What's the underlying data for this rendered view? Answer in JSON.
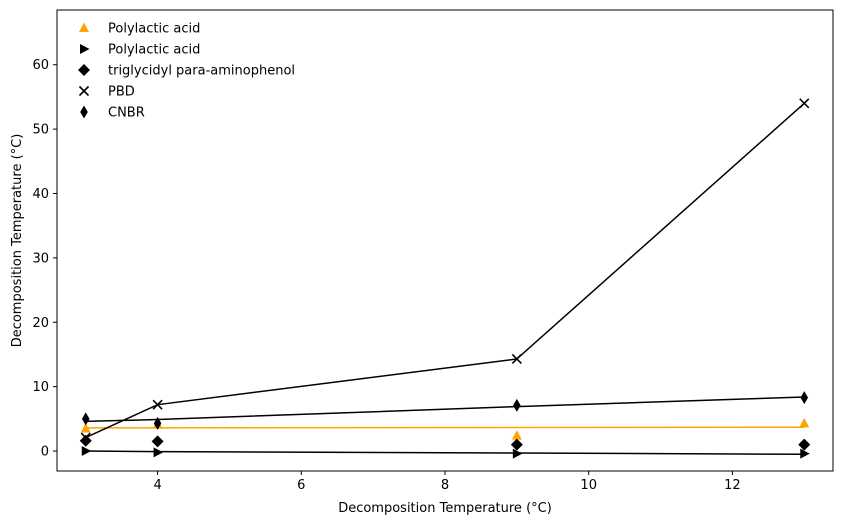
{
  "chart_data": {
    "type": "scatter",
    "xlabel": "Decomposition Temperature (°C)",
    "ylabel": "Decomposition Temperature (°C)",
    "xlim": [
      2.6,
      13.4
    ],
    "ylim": [
      -3.1,
      68.5
    ],
    "xticks": [
      4,
      6,
      8,
      10,
      12
    ],
    "yticks": [
      0,
      10,
      20,
      30,
      40,
      50,
      60
    ],
    "grid": false,
    "legend_position": "top-left",
    "series": [
      {
        "name": "Polylactic acid",
        "marker": "triangle-up",
        "color": "#ffa500",
        "x": [
          3,
          4,
          9,
          13
        ],
        "y": [
          3.5,
          4.1,
          2.4,
          4.3
        ],
        "fit_line": [
          [
            3,
            3.6
          ],
          [
            13,
            3.7
          ]
        ]
      },
      {
        "name": "Polylactic acid",
        "marker": "triangle-right",
        "color": "#000000",
        "x": [
          3,
          4,
          9,
          13
        ],
        "y": [
          0.0,
          -0.2,
          -0.4,
          -0.4
        ],
        "fit_line": [
          [
            3,
            0.0
          ],
          [
            4,
            -0.1
          ],
          [
            9,
            -0.3
          ],
          [
            13,
            -0.5
          ]
        ]
      },
      {
        "name": "triglycidyl para-aminophenol",
        "marker": "diamond",
        "color": "#000000",
        "x": [
          3,
          4,
          9,
          13
        ],
        "y": [
          1.6,
          1.5,
          1.0,
          1.0
        ],
        "fit_line": null
      },
      {
        "name": "PBD",
        "marker": "x",
        "color": "#000000",
        "x": [
          3,
          4,
          9,
          13
        ],
        "y": [
          2.1,
          7.2,
          14.3,
          54.0
        ],
        "fit_line": [
          [
            3,
            2.1
          ],
          [
            4,
            7.2
          ],
          [
            9,
            14.3
          ],
          [
            13,
            54.0
          ]
        ]
      },
      {
        "name": "CNBR",
        "marker": "thin-diamond",
        "color": "#000000",
        "x": [
          3,
          4,
          9,
          13
        ],
        "y": [
          5.0,
          4.3,
          7.1,
          8.3
        ],
        "fit_line": [
          [
            3,
            4.6
          ],
          [
            4,
            4.9
          ],
          [
            9,
            6.9
          ],
          [
            13,
            8.4
          ]
        ]
      }
    ]
  }
}
